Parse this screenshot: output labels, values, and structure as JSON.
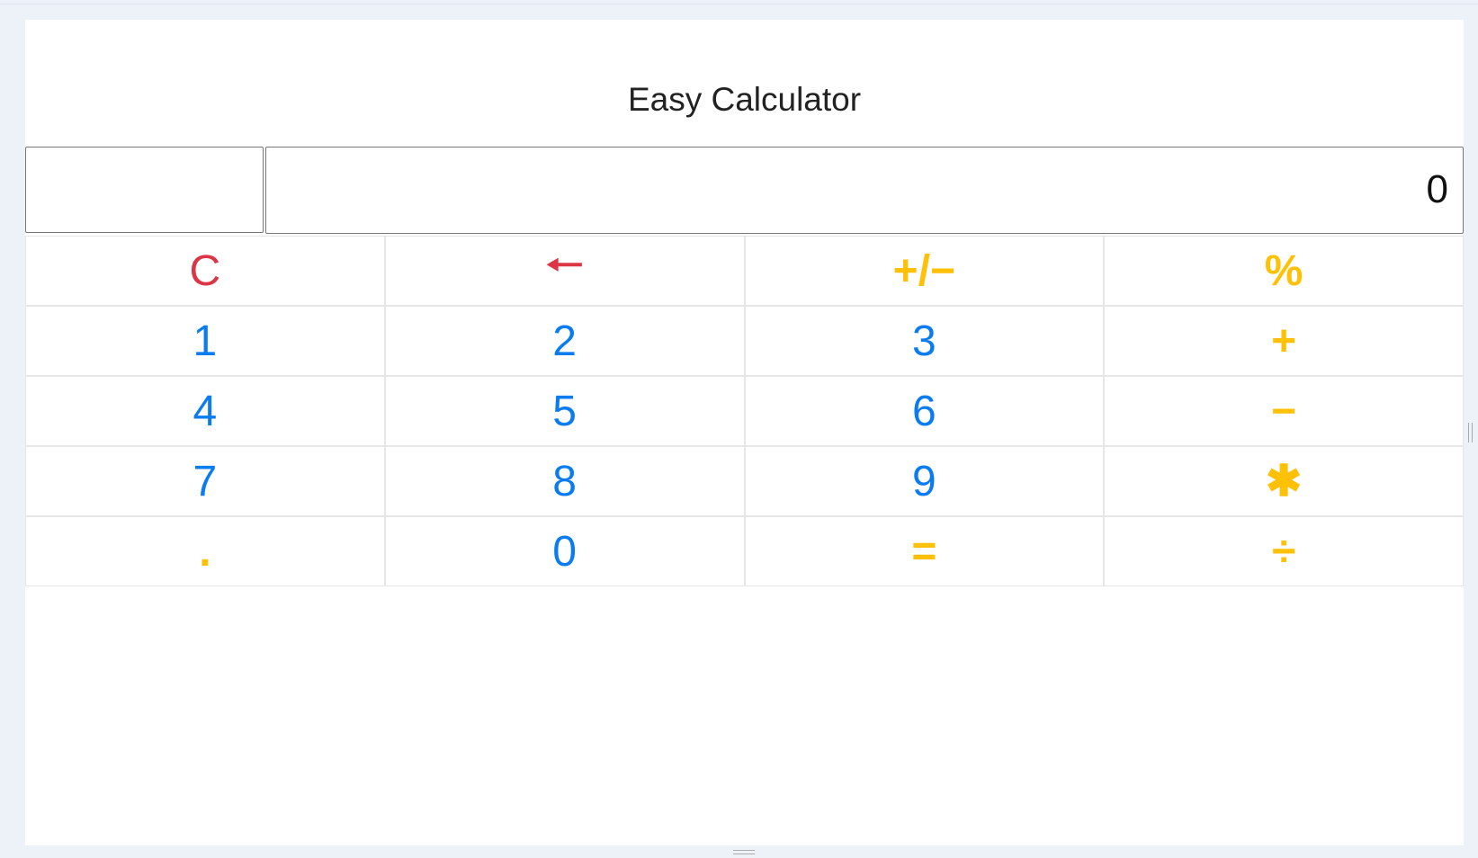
{
  "app": {
    "title": "Easy Calculator"
  },
  "display": {
    "expression": "",
    "value": "0"
  },
  "colors": {
    "digit": "#0a7cf0",
    "control": "#dc3545",
    "operator": "#ffc107"
  },
  "keys": [
    {
      "label": "C",
      "name": "clear-button",
      "kind": "red c"
    },
    {
      "label": "🠐",
      "name": "backspace-button",
      "kind": "red"
    },
    {
      "label": "+/−",
      "name": "toggle-sign-button",
      "kind": "yellow"
    },
    {
      "label": "%",
      "name": "percent-button",
      "kind": "yellow"
    },
    {
      "label": "1",
      "name": "digit-1-button",
      "kind": "blue"
    },
    {
      "label": "2",
      "name": "digit-2-button",
      "kind": "blue"
    },
    {
      "label": "3",
      "name": "digit-3-button",
      "kind": "blue"
    },
    {
      "label": "+",
      "name": "add-button",
      "kind": "yellow"
    },
    {
      "label": "4",
      "name": "digit-4-button",
      "kind": "blue"
    },
    {
      "label": "5",
      "name": "digit-5-button",
      "kind": "blue"
    },
    {
      "label": "6",
      "name": "digit-6-button",
      "kind": "blue"
    },
    {
      "label": "−",
      "name": "subtract-button",
      "kind": "yellow"
    },
    {
      "label": "7",
      "name": "digit-7-button",
      "kind": "blue"
    },
    {
      "label": "8",
      "name": "digit-8-button",
      "kind": "blue"
    },
    {
      "label": "9",
      "name": "digit-9-button",
      "kind": "blue"
    },
    {
      "label": "✱",
      "name": "multiply-button",
      "kind": "yellow"
    },
    {
      "label": ".",
      "name": "decimal-button",
      "kind": "yellow"
    },
    {
      "label": "0",
      "name": "digit-0-button",
      "kind": "blue"
    },
    {
      "label": "=",
      "name": "equals-button",
      "kind": "yellow"
    },
    {
      "label": "÷",
      "name": "divide-button",
      "kind": "yellow"
    }
  ]
}
